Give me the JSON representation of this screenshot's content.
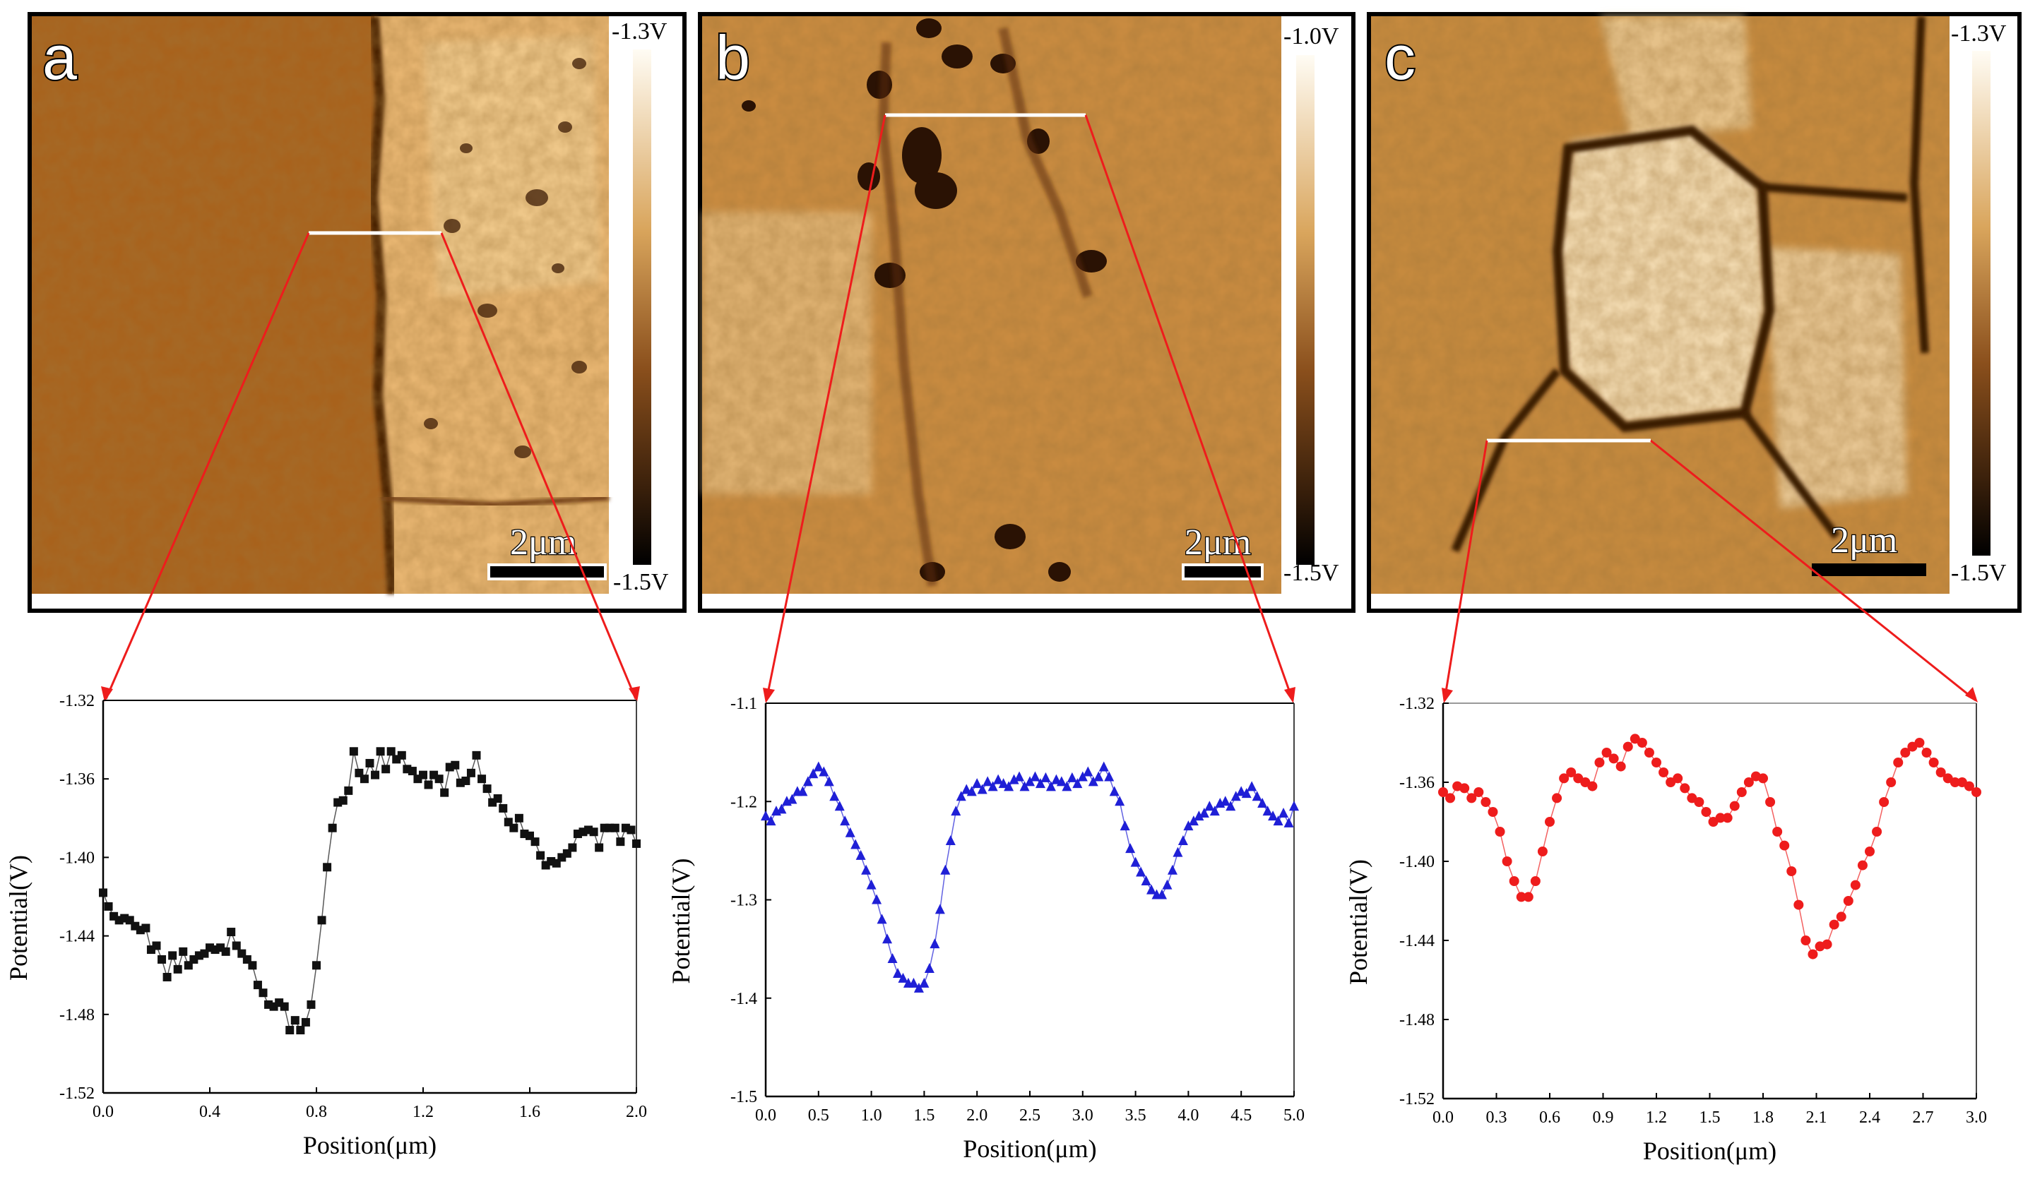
{
  "panels": [
    {
      "letter": "a",
      "cbar_top": "-1.3V",
      "cbar_bottom": "-1.5V",
      "scale_label": "2μm"
    },
    {
      "letter": "b",
      "cbar_top": "-1.0V",
      "cbar_bottom": "-1.5V",
      "scale_label": "2μm"
    },
    {
      "letter": "c",
      "cbar_top": "-1.3V",
      "cbar_bottom": "-1.5V",
      "scale_label": "2μm"
    }
  ],
  "colors": {
    "afm_light": "#fffbf0",
    "afm_mid": "#c78a3a",
    "afm_dark": "#0a0603",
    "pointer": "#ee1c1c",
    "series_a": "#111111",
    "series_b": "#1f1fd6",
    "series_c": "#ee1c1c"
  },
  "chart_data": [
    {
      "type": "scatter",
      "panel": "a",
      "marker": "square",
      "xlabel": "Position(μm)",
      "ylabel": "Potential(V)",
      "xlim": [
        0.0,
        2.0
      ],
      "ylim": [
        -1.52,
        -1.32
      ],
      "xticks": [
        "0.0",
        "0.4",
        "0.8",
        "1.2",
        "1.6",
        "2.0"
      ],
      "yticks": [
        "-1.32",
        "-1.36",
        "-1.40",
        "-1.44",
        "-1.48",
        "-1.52"
      ],
      "series": [
        {
          "name": "a",
          "x": [
            0.0,
            0.02,
            0.04,
            0.06,
            0.08,
            0.1,
            0.12,
            0.14,
            0.16,
            0.18,
            0.2,
            0.22,
            0.24,
            0.26,
            0.28,
            0.3,
            0.32,
            0.34,
            0.36,
            0.38,
            0.4,
            0.42,
            0.44,
            0.46,
            0.48,
            0.5,
            0.52,
            0.54,
            0.56,
            0.58,
            0.6,
            0.62,
            0.64,
            0.66,
            0.68,
            0.7,
            0.72,
            0.74,
            0.76,
            0.78,
            0.8,
            0.82,
            0.84,
            0.86,
            0.88,
            0.9,
            0.92,
            0.94,
            0.96,
            0.98,
            1.0,
            1.02,
            1.04,
            1.06,
            1.08,
            1.1,
            1.12,
            1.14,
            1.16,
            1.18,
            1.2,
            1.22,
            1.24,
            1.26,
            1.28,
            1.3,
            1.32,
            1.34,
            1.36,
            1.38,
            1.4,
            1.42,
            1.44,
            1.46,
            1.48,
            1.5,
            1.52,
            1.54,
            1.56,
            1.58,
            1.6,
            1.62,
            1.64,
            1.66,
            1.68,
            1.7,
            1.72,
            1.74,
            1.76,
            1.78,
            1.8,
            1.82,
            1.84,
            1.86,
            1.88,
            1.9,
            1.92,
            1.94,
            1.96,
            1.98,
            2.0
          ],
          "y": [
            -1.418,
            -1.425,
            -1.43,
            -1.432,
            -1.431,
            -1.432,
            -1.435,
            -1.437,
            -1.436,
            -1.447,
            -1.445,
            -1.452,
            -1.461,
            -1.45,
            -1.457,
            -1.448,
            -1.455,
            -1.452,
            -1.45,
            -1.449,
            -1.446,
            -1.447,
            -1.446,
            -1.448,
            -1.438,
            -1.445,
            -1.449,
            -1.452,
            -1.455,
            -1.465,
            -1.469,
            -1.475,
            -1.476,
            -1.474,
            -1.476,
            -1.488,
            -1.483,
            -1.488,
            -1.484,
            -1.475,
            -1.455,
            -1.432,
            -1.405,
            -1.385,
            -1.372,
            -1.371,
            -1.366,
            -1.346,
            -1.357,
            -1.36,
            -1.352,
            -1.358,
            -1.346,
            -1.355,
            -1.346,
            -1.35,
            -1.348,
            -1.355,
            -1.356,
            -1.36,
            -1.358,
            -1.363,
            -1.358,
            -1.36,
            -1.367,
            -1.354,
            -1.353,
            -1.362,
            -1.361,
            -1.357,
            -1.348,
            -1.36,
            -1.365,
            -1.372,
            -1.37,
            -1.375,
            -1.382,
            -1.385,
            -1.38,
            -1.388,
            -1.389,
            -1.392,
            -1.399,
            -1.404,
            -1.402,
            -1.403,
            -1.4,
            -1.398,
            -1.395,
            -1.388,
            -1.387,
            -1.386,
            -1.387,
            -1.395,
            -1.385,
            -1.385,
            -1.385,
            -1.392,
            -1.385,
            -1.386,
            -1.393
          ]
        }
      ]
    },
    {
      "type": "scatter",
      "panel": "b",
      "marker": "triangle",
      "xlabel": "Position(μm)",
      "ylabel": "Potential(V)",
      "xlim": [
        0.0,
        5.0
      ],
      "ylim": [
        -1.5,
        -1.1
      ],
      "xticks": [
        "0.0",
        "0.5",
        "1.0",
        "1.5",
        "2.0",
        "2.5",
        "3.0",
        "3.5",
        "4.0",
        "4.5",
        "5.0"
      ],
      "yticks": [
        "-1.1",
        "-1.2",
        "-1.3",
        "-1.4",
        "-1.5"
      ],
      "series": [
        {
          "name": "b",
          "x": [
            0.0,
            0.05,
            0.1,
            0.15,
            0.2,
            0.25,
            0.3,
            0.35,
            0.4,
            0.45,
            0.5,
            0.55,
            0.6,
            0.65,
            0.7,
            0.75,
            0.8,
            0.85,
            0.9,
            0.95,
            1.0,
            1.05,
            1.1,
            1.15,
            1.2,
            1.25,
            1.3,
            1.35,
            1.4,
            1.45,
            1.5,
            1.55,
            1.6,
            1.65,
            1.7,
            1.75,
            1.8,
            1.85,
            1.9,
            1.95,
            2.0,
            2.05,
            2.1,
            2.15,
            2.2,
            2.25,
            2.3,
            2.35,
            2.4,
            2.45,
            2.5,
            2.55,
            2.6,
            2.65,
            2.7,
            2.75,
            2.8,
            2.85,
            2.9,
            2.95,
            3.0,
            3.05,
            3.1,
            3.15,
            3.2,
            3.25,
            3.3,
            3.35,
            3.4,
            3.45,
            3.5,
            3.55,
            3.6,
            3.65,
            3.7,
            3.75,
            3.8,
            3.85,
            3.9,
            3.95,
            4.0,
            4.05,
            4.1,
            4.15,
            4.2,
            4.25,
            4.3,
            4.35,
            4.4,
            4.45,
            4.5,
            4.55,
            4.6,
            4.65,
            4.7,
            4.75,
            4.8,
            4.85,
            4.9,
            4.95,
            5.0
          ],
          "y": [
            -1.215,
            -1.22,
            -1.21,
            -1.208,
            -1.2,
            -1.198,
            -1.19,
            -1.19,
            -1.18,
            -1.172,
            -1.165,
            -1.17,
            -1.18,
            -1.195,
            -1.205,
            -1.22,
            -1.232,
            -1.244,
            -1.255,
            -1.27,
            -1.285,
            -1.3,
            -1.32,
            -1.34,
            -1.36,
            -1.375,
            -1.38,
            -1.385,
            -1.385,
            -1.39,
            -1.385,
            -1.37,
            -1.345,
            -1.31,
            -1.27,
            -1.24,
            -1.21,
            -1.195,
            -1.188,
            -1.19,
            -1.182,
            -1.188,
            -1.18,
            -1.185,
            -1.178,
            -1.182,
            -1.185,
            -1.178,
            -1.175,
            -1.185,
            -1.18,
            -1.175,
            -1.182,
            -1.176,
            -1.185,
            -1.178,
            -1.18,
            -1.185,
            -1.176,
            -1.182,
            -1.175,
            -1.17,
            -1.18,
            -1.175,
            -1.165,
            -1.175,
            -1.19,
            -1.2,
            -1.225,
            -1.248,
            -1.262,
            -1.272,
            -1.281,
            -1.29,
            -1.295,
            -1.295,
            -1.285,
            -1.27,
            -1.252,
            -1.24,
            -1.225,
            -1.22,
            -1.215,
            -1.212,
            -1.205,
            -1.21,
            -1.202,
            -1.2,
            -1.205,
            -1.195,
            -1.19,
            -1.192,
            -1.185,
            -1.195,
            -1.202,
            -1.21,
            -1.215,
            -1.22,
            -1.212,
            -1.222,
            -1.205
          ]
        }
      ]
    },
    {
      "type": "scatter",
      "panel": "c",
      "marker": "circle",
      "xlabel": "Position(μm)",
      "ylabel": "Potential(V)",
      "xlim": [
        0.0,
        3.0
      ],
      "ylim": [
        -1.52,
        -1.32
      ],
      "xticks": [
        "0.0",
        "0.3",
        "0.6",
        "0.9",
        "1.2",
        "1.5",
        "1.8",
        "2.1",
        "2.4",
        "2.7",
        "3.0"
      ],
      "yticks": [
        "-1.32",
        "-1.36",
        "-1.40",
        "-1.44",
        "-1.48",
        "-1.52"
      ],
      "series": [
        {
          "name": "c",
          "x": [
            0.0,
            0.04,
            0.08,
            0.12,
            0.16,
            0.2,
            0.24,
            0.28,
            0.32,
            0.36,
            0.4,
            0.44,
            0.48,
            0.52,
            0.56,
            0.6,
            0.64,
            0.68,
            0.72,
            0.76,
            0.8,
            0.84,
            0.88,
            0.92,
            0.96,
            1.0,
            1.04,
            1.08,
            1.12,
            1.16,
            1.2,
            1.24,
            1.28,
            1.32,
            1.36,
            1.4,
            1.44,
            1.48,
            1.52,
            1.56,
            1.6,
            1.64,
            1.68,
            1.72,
            1.76,
            1.8,
            1.84,
            1.88,
            1.92,
            1.96,
            2.0,
            2.04,
            2.08,
            2.12,
            2.16,
            2.2,
            2.24,
            2.28,
            2.32,
            2.36,
            2.4,
            2.44,
            2.48,
            2.52,
            2.56,
            2.6,
            2.64,
            2.68,
            2.72,
            2.76,
            2.8,
            2.84,
            2.88,
            2.92,
            2.96,
            3.0
          ],
          "y": [
            -1.365,
            -1.368,
            -1.362,
            -1.363,
            -1.368,
            -1.365,
            -1.37,
            -1.375,
            -1.385,
            -1.4,
            -1.41,
            -1.418,
            -1.418,
            -1.41,
            -1.395,
            -1.38,
            -1.368,
            -1.358,
            -1.355,
            -1.358,
            -1.36,
            -1.362,
            -1.35,
            -1.345,
            -1.348,
            -1.352,
            -1.342,
            -1.338,
            -1.34,
            -1.345,
            -1.35,
            -1.355,
            -1.36,
            -1.358,
            -1.363,
            -1.368,
            -1.37,
            -1.375,
            -1.38,
            -1.378,
            -1.378,
            -1.372,
            -1.365,
            -1.36,
            -1.357,
            -1.358,
            -1.37,
            -1.385,
            -1.392,
            -1.405,
            -1.422,
            -1.44,
            -1.447,
            -1.443,
            -1.442,
            -1.432,
            -1.428,
            -1.42,
            -1.412,
            -1.402,
            -1.395,
            -1.385,
            -1.37,
            -1.36,
            -1.35,
            -1.345,
            -1.342,
            -1.34,
            -1.345,
            -1.35,
            -1.355,
            -1.358,
            -1.36,
            -1.36,
            -1.362,
            -1.365
          ]
        }
      ]
    }
  ]
}
